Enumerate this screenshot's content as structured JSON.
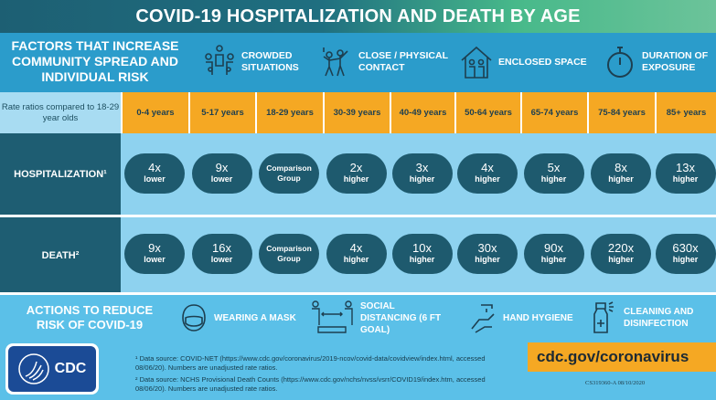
{
  "title": "COVID-19 HOSPITALIZATION AND DEATH BY AGE",
  "factors": {
    "title": "FACTORS THAT INCREASE COMMUNITY SPREAD AND INDIVIDUAL RISK",
    "items": [
      {
        "label": "CROWDED SITUATIONS",
        "icon": "crowd-icon"
      },
      {
        "label": "CLOSE / PHYSICAL CONTACT",
        "icon": "dancing-people-icon"
      },
      {
        "label": "ENCLOSED SPACE",
        "icon": "house-icon"
      },
      {
        "label": "DURATION OF EXPOSURE",
        "icon": "stopwatch-icon"
      }
    ]
  },
  "table": {
    "row_header": "Rate ratios compared to 18-29 year olds",
    "ages": [
      "0-4 years",
      "5-17 years",
      "18-29 years",
      "30-39 years",
      "40-49 years",
      "50-64 years",
      "65-74 years",
      "75-84 years",
      "85+ years"
    ],
    "rows": [
      {
        "label": "HOSPITALIZATION¹",
        "cells": [
          {
            "v": "4x",
            "d": "lower"
          },
          {
            "v": "9x",
            "d": "lower"
          },
          {
            "v": "Comparison Group",
            "d": ""
          },
          {
            "v": "2x",
            "d": "higher"
          },
          {
            "v": "3x",
            "d": "higher"
          },
          {
            "v": "4x",
            "d": "higher"
          },
          {
            "v": "5x",
            "d": "higher"
          },
          {
            "v": "8x",
            "d": "higher"
          },
          {
            "v": "13x",
            "d": "higher"
          }
        ]
      },
      {
        "label": "DEATH²",
        "cells": [
          {
            "v": "9x",
            "d": "lower"
          },
          {
            "v": "16x",
            "d": "lower"
          },
          {
            "v": "Comparison Group",
            "d": ""
          },
          {
            "v": "4x",
            "d": "higher"
          },
          {
            "v": "10x",
            "d": "higher"
          },
          {
            "v": "30x",
            "d": "higher"
          },
          {
            "v": "90x",
            "d": "higher"
          },
          {
            "v": "220x",
            "d": "higher"
          },
          {
            "v": "630x",
            "d": "higher"
          }
        ]
      }
    ]
  },
  "actions": {
    "title": "ACTIONS TO REDUCE RISK OF COVID-19",
    "items": [
      {
        "label": "WEARING A MASK",
        "icon": "mask-icon"
      },
      {
        "label": "SOCIAL DISTANCING (6 FT GOAL)",
        "icon": "social-distancing-icon"
      },
      {
        "label": "HAND HYGIENE",
        "icon": "handwashing-icon"
      },
      {
        "label": "CLEANING AND DISINFECTION",
        "icon": "spray-bottle-icon"
      }
    ]
  },
  "notes": [
    "¹ Data source: COVID-NET (https://www.cdc.gov/coronavirus/2019-ncov/covid-data/covidview/index.html, accessed 08/06/20). Numbers are unadjusted rate ratios.",
    "² Data source: NCHS Provisional Death Counts (https://www.cdc.gov/nchs/nvss/vsrr/COVID19/index.htm, accessed 08/06/20). Numbers are unadjusted rate ratios."
  ],
  "logo": "CDC",
  "url": "cdc.gov/coronavirus",
  "code": "CS319360-A 08/10/2020",
  "colors": {
    "header_dark": "#1d5f73",
    "header_green": "#6cc39a",
    "band_blue": "#2b9ccb",
    "orange": "#f5a823",
    "pill": "#1e5a6e",
    "light_blue": "#8ed2ef"
  }
}
